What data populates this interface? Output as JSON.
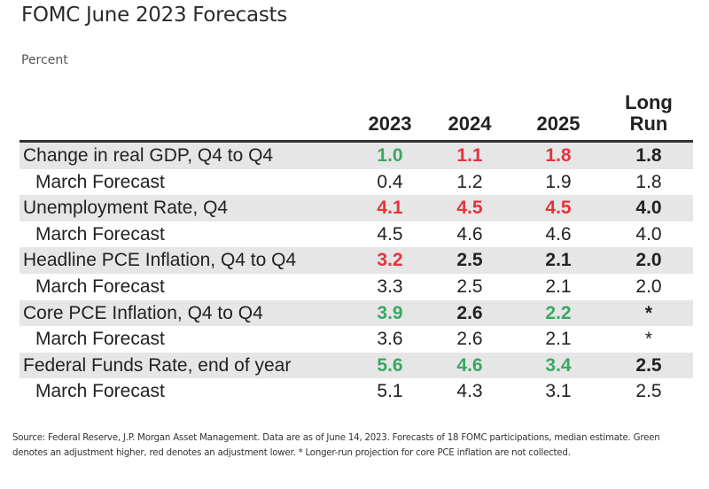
{
  "title": "FOMC June 2023 Forecasts",
  "subtitle": "Percent",
  "colors": {
    "up": "#3aa862",
    "down": "#e8323c",
    "neutral": "#222222"
  },
  "chart_data": {
    "type": "table",
    "title": "FOMC June 2023 Forecasts",
    "unit": "Percent",
    "columns": [
      "2023",
      "2024",
      "2025",
      "Long Run"
    ],
    "rows": [
      {
        "label": "Change in real GDP, Q4 to Q4",
        "kind": "main",
        "values": [
          "1.0",
          "1.1",
          "1.8",
          "1.8"
        ],
        "changes": [
          "up",
          "down",
          "down",
          "none"
        ]
      },
      {
        "label": "March Forecast",
        "kind": "sub",
        "values": [
          "0.4",
          "1.2",
          "1.9",
          "1.8"
        ],
        "changes": [
          "none",
          "none",
          "none",
          "none"
        ]
      },
      {
        "label": "Unemployment Rate, Q4",
        "kind": "main",
        "values": [
          "4.1",
          "4.5",
          "4.5",
          "4.0"
        ],
        "changes": [
          "down",
          "down",
          "down",
          "none"
        ]
      },
      {
        "label": "March Forecast",
        "kind": "sub",
        "values": [
          "4.5",
          "4.6",
          "4.6",
          "4.0"
        ],
        "changes": [
          "none",
          "none",
          "none",
          "none"
        ]
      },
      {
        "label": "Headline PCE Inflation, Q4 to Q4",
        "kind": "main",
        "values": [
          "3.2",
          "2.5",
          "2.1",
          "2.0"
        ],
        "changes": [
          "down",
          "none",
          "none",
          "none"
        ]
      },
      {
        "label": "March Forecast",
        "kind": "sub",
        "values": [
          "3.3",
          "2.5",
          "2.1",
          "2.0"
        ],
        "changes": [
          "none",
          "none",
          "none",
          "none"
        ]
      },
      {
        "label": "Core PCE Inflation, Q4 to Q4",
        "kind": "main",
        "values": [
          "3.9",
          "2.6",
          "2.2",
          "*"
        ],
        "changes": [
          "up",
          "none",
          "up",
          "none"
        ]
      },
      {
        "label": "March Forecast",
        "kind": "sub",
        "values": [
          "3.6",
          "2.6",
          "2.1",
          "*"
        ],
        "changes": [
          "none",
          "none",
          "none",
          "none"
        ]
      },
      {
        "label": "Federal Funds Rate, end of year",
        "kind": "main",
        "values": [
          "5.6",
          "4.6",
          "3.4",
          "2.5"
        ],
        "changes": [
          "up",
          "up",
          "up",
          "none"
        ]
      },
      {
        "label": "March Forecast",
        "kind": "sub",
        "values": [
          "5.1",
          "4.3",
          "3.1",
          "2.5"
        ],
        "changes": [
          "none",
          "none",
          "none",
          "none"
        ]
      }
    ],
    "legend": {
      "up": "Green denotes an adjustment higher",
      "down": "red denotes an adjustment lower"
    }
  },
  "footnote": "Source: Federal Reserve, J.P. Morgan Asset Management. Data are as of June 14, 2023. Forecasts of 18 FOMC participations, median estimate. Green denotes an adjustment higher, red denotes an adjustment lower. * Longer-run projection for core PCE inflation are not collected."
}
